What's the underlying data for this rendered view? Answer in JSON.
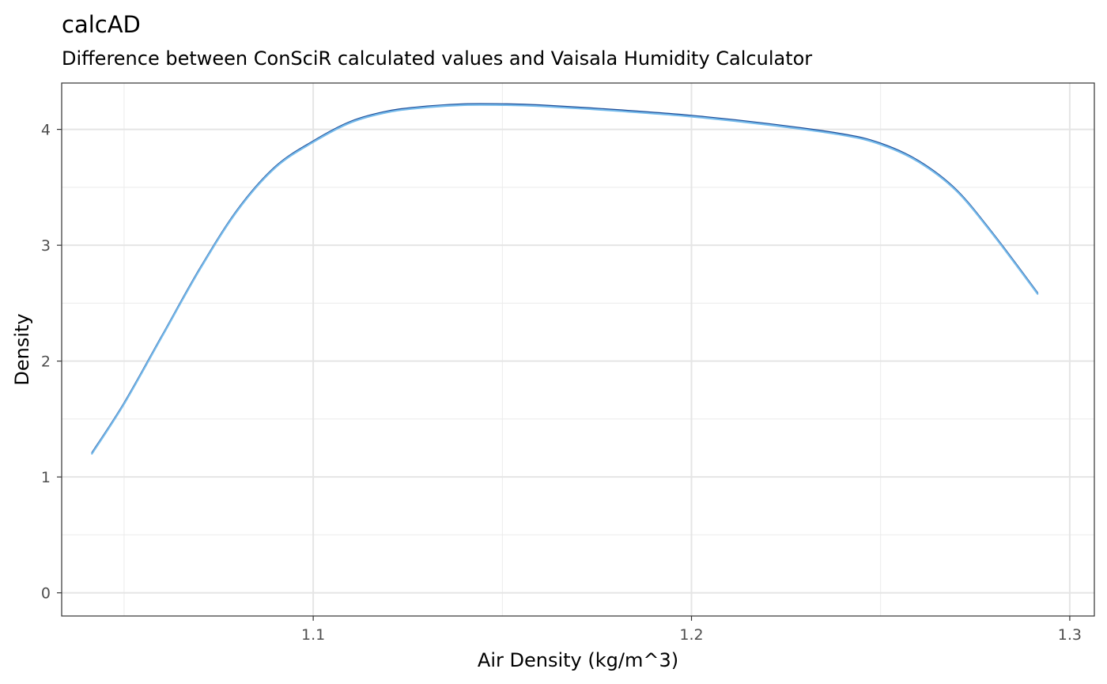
{
  "chart_data": {
    "type": "line",
    "title": "calcAD",
    "subtitle": "Difference between ConSciR calculated values and Vaisala Humidity Calculator",
    "xlabel": "Air Density (kg/m^3)",
    "ylabel": "Density",
    "xlim": [
      1.0335,
      1.3065
    ],
    "ylim": [
      -0.2,
      4.4
    ],
    "x_ticks": [
      1.1,
      1.2,
      1.3
    ],
    "x_tick_labels": [
      "1.1",
      "1.2",
      "1.3"
    ],
    "y_ticks": [
      0,
      1,
      2,
      3,
      4
    ],
    "y_tick_labels": [
      "0",
      "1",
      "2",
      "3",
      "4"
    ],
    "x_minor_ticks": [
      1.05,
      1.15,
      1.25
    ],
    "y_minor_ticks": [
      0.5,
      1.5,
      2.5,
      3.5
    ],
    "grid": true,
    "legend": "none",
    "series": [
      {
        "color": "#1f4e99",
        "x": [
          1.0415,
          1.05,
          1.06,
          1.07,
          1.08,
          1.09,
          1.1,
          1.11,
          1.12,
          1.13,
          1.14,
          1.15,
          1.16,
          1.18,
          1.2,
          1.22,
          1.24,
          1.25,
          1.26,
          1.27,
          1.28,
          1.2915
        ],
        "y": [
          1.21,
          1.64,
          2.22,
          2.8,
          3.31,
          3.68,
          3.9,
          4.07,
          4.16,
          4.2,
          4.22,
          4.22,
          4.21,
          4.17,
          4.12,
          4.05,
          3.96,
          3.88,
          3.73,
          3.48,
          3.09,
          2.59
        ]
      },
      {
        "color": "#74b9ea",
        "x": [
          1.0415,
          1.05,
          1.06,
          1.07,
          1.08,
          1.09,
          1.1,
          1.11,
          1.12,
          1.13,
          1.14,
          1.15,
          1.16,
          1.18,
          1.2,
          1.22,
          1.24,
          1.25,
          1.26,
          1.27,
          1.28,
          1.2915
        ],
        "y": [
          1.2,
          1.63,
          2.21,
          2.79,
          3.3,
          3.67,
          3.89,
          4.06,
          4.15,
          4.19,
          4.21,
          4.21,
          4.2,
          4.16,
          4.11,
          4.04,
          3.95,
          3.87,
          3.72,
          3.47,
          3.08,
          2.58
        ]
      }
    ]
  }
}
